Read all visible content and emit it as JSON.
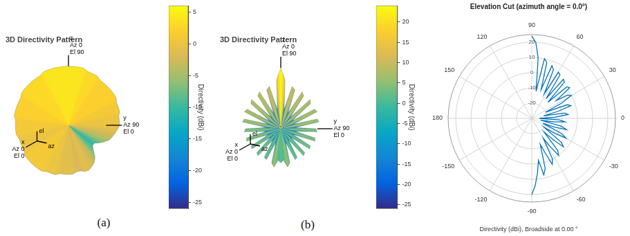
{
  "chart_data": [
    {
      "type": "pattern3d",
      "title": "3D Directivity Pattern",
      "caption": "(a)",
      "categories": [
        null,
        null,
        null,
        null,
        null,
        null,
        null,
        null,
        null,
        null,
        null,
        null,
        null,
        null,
        null,
        null,
        null,
        null,
        null,
        null,
        null,
        null,
        null,
        null,
        null,
        null,
        null,
        null,
        null,
        null,
        null,
        null,
        null,
        null,
        null,
        null,
        null,
        null,
        null,
        null,
        null,
        null,
        null,
        null,
        null,
        null,
        null,
        null,
        null,
        null,
        null,
        null,
        null,
        null,
        null,
        null,
        null,
        null,
        null,
        null,
        null,
        null,
        null,
        null,
        null,
        null,
        null,
        null,
        null,
        null,
        null,
        null
      ],
      "values": [
        4,
        4,
        4,
        4,
        3,
        3,
        3,
        2,
        2,
        2,
        2,
        2,
        2,
        1,
        1,
        1,
        0,
        0,
        0,
        -1,
        -2,
        -3,
        -4,
        -6,
        -8,
        -10,
        -10,
        -8,
        -5,
        -3,
        -2,
        -1,
        -1,
        -2,
        -2,
        -1,
        -1,
        -1,
        -1,
        0,
        0,
        0,
        1,
        1,
        1,
        1,
        1,
        1,
        0,
        0,
        0,
        0,
        1,
        1,
        1,
        1,
        2,
        2,
        2,
        2,
        2,
        3,
        3,
        3,
        3,
        3,
        3,
        4,
        4,
        4,
        4,
        4
      ],
      "axis_labels": {
        "z": [
          "z",
          "Az 0",
          "El 90"
        ],
        "x": [
          "x",
          "Az 0",
          "El 0"
        ],
        "y": [
          "y",
          "Az 90",
          "El 0"
        ]
      },
      "triad_labels": [
        "el",
        "az"
      ],
      "colorbar": {
        "label": "Directivity (dBi)",
        "range": [
          -26,
          6
        ],
        "ticks": [
          -25,
          -20,
          -15,
          -10,
          -5,
          0,
          5
        ]
      },
      "tick_labels": false
    },
    {
      "type": "pattern3d",
      "title": "3D Directivity Pattern",
      "caption": "(b)",
      "categories": [
        null,
        null,
        null,
        null,
        null,
        null,
        null,
        null,
        null,
        null,
        null,
        null,
        null,
        null,
        null,
        null,
        null,
        null,
        null,
        null,
        null,
        null,
        null,
        null,
        null,
        null,
        null,
        null,
        null,
        null,
        null,
        null,
        null,
        null,
        null,
        null,
        null,
        null,
        null,
        null,
        null,
        null,
        null,
        null,
        null,
        null,
        null,
        null,
        null,
        null,
        null,
        null,
        null,
        null,
        null,
        null,
        null,
        null,
        null,
        null,
        null,
        null,
        null,
        null,
        null,
        null,
        null,
        null,
        null,
        null,
        null,
        null
      ],
      "values": [
        24,
        14,
        -10,
        10,
        8,
        -12,
        9,
        7,
        -14,
        8,
        6,
        -15,
        6,
        7,
        -15,
        5,
        6,
        -14,
        3,
        4,
        -14,
        3,
        4,
        -15,
        2,
        3,
        -15,
        2,
        3,
        -15,
        1,
        2,
        -14,
        3,
        6,
        0,
        2,
        0,
        6,
        3,
        -14,
        2,
        1,
        -15,
        3,
        2,
        -15,
        3,
        2,
        -15,
        4,
        3,
        -14,
        4,
        3,
        -14,
        6,
        5,
        -15,
        7,
        6,
        -15,
        6,
        8,
        -14,
        7,
        9,
        -12,
        8,
        10,
        -10,
        14
      ],
      "axis_labels": {
        "z": [
          "z",
          "Az 0",
          "El 90"
        ],
        "x": [
          "x",
          "Az 0",
          "El 0"
        ],
        "y": [
          "y",
          "Az 90",
          "El 0"
        ]
      },
      "triad_labels": [
        "el",
        "az"
      ],
      "colorbar": {
        "label": "Directivity (dBi)",
        "range": [
          -26,
          24
        ],
        "ticks": [
          -25,
          -20,
          -15,
          -10,
          -5,
          0,
          5,
          10,
          15,
          20
        ]
      },
      "tick_labels": false
    },
    {
      "type": "polar",
      "title": "Elevation Cut (azimuth angle = 0.0°)",
      "subtitle": "Directivity (dBi), Broadside at 0.00 °",
      "categories": [
        "90",
        null,
        null,
        null,
        null,
        null,
        null,
        null,
        null,
        null,
        "60",
        null,
        null,
        null,
        null,
        null,
        null,
        null,
        null,
        null,
        "30",
        null,
        null,
        null,
        null,
        null,
        null,
        null,
        null,
        null,
        "0",
        null,
        null,
        null,
        null,
        null,
        null,
        null,
        null,
        null,
        "-30",
        null,
        null,
        null,
        null,
        null,
        null,
        null,
        null,
        null,
        "-60",
        null,
        null,
        null,
        null,
        null,
        null,
        null,
        null,
        null,
        "-90",
        null,
        null,
        null,
        null,
        null,
        null,
        null,
        null,
        null,
        "-120",
        null,
        null,
        null,
        null,
        null,
        null,
        null,
        null,
        null,
        "-150",
        null,
        null,
        null,
        null,
        null,
        null,
        null,
        null,
        null,
        "180",
        null,
        null,
        null,
        null,
        null,
        null,
        null,
        null,
        null,
        "150",
        null,
        null,
        null,
        null,
        null,
        null,
        null,
        null,
        null,
        "120",
        null,
        null,
        null,
        null,
        null,
        null,
        null,
        null,
        null
      ],
      "values": [
        24,
        20,
        10,
        -12,
        10,
        8,
        -10,
        7,
        5,
        -12,
        5,
        4,
        -14,
        3,
        2,
        -15,
        1,
        2,
        -10,
        -2,
        0,
        -8,
        -20,
        -5,
        -3,
        -12,
        -22,
        -8,
        -6,
        -15,
        -25,
        -12,
        -8,
        -15,
        -24,
        -10,
        -6,
        -14,
        -22,
        -8,
        -4,
        -12,
        -20,
        -5,
        -2,
        -10,
        -18,
        -3,
        0,
        -8,
        -15,
        0,
        3,
        -6,
        -12,
        4,
        8,
        -2,
        6,
        14,
        20,
        null,
        null,
        null,
        null,
        null,
        null,
        null,
        null,
        null,
        null,
        null,
        null,
        null,
        null,
        null,
        null,
        null,
        null,
        null,
        null,
        null,
        null,
        null,
        null,
        null,
        null,
        null,
        null,
        null,
        null,
        null,
        null,
        null,
        null,
        null,
        null,
        null,
        null,
        null,
        null,
        null,
        null,
        null,
        null,
        null,
        null,
        null,
        null,
        null,
        null,
        null,
        null,
        null,
        null,
        null,
        null,
        null,
        null,
        null
      ],
      "rlim": [
        -30,
        25
      ],
      "rticks": [
        -20,
        -10,
        0,
        10,
        20
      ],
      "color": "#0072bd",
      "grid": true
    }
  ]
}
